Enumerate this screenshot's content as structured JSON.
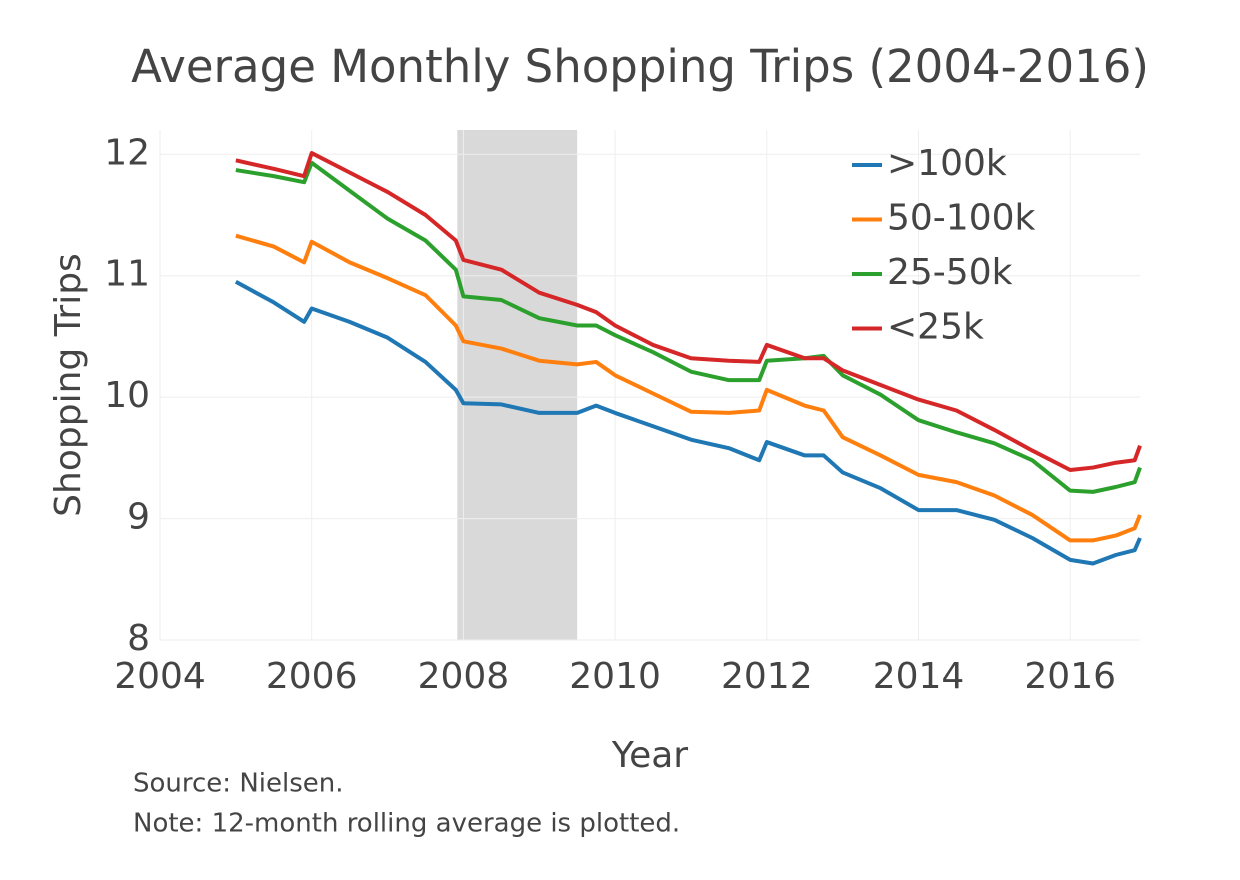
{
  "chart_data": {
    "type": "line",
    "title": "Average Monthly Shopping Trips (2004-2016)",
    "x_label": "Year",
    "y_label": "Shopping Trips",
    "notes": [
      "Source: Nielsen.",
      "Note: 12-month rolling average is plotted."
    ],
    "x": [
      2005.0,
      2005.5,
      2005.9,
      2006.0,
      2006.5,
      2007.0,
      2007.5,
      2007.9,
      2008.0,
      2008.5,
      2009.0,
      2009.5,
      2009.75,
      2010.0,
      2010.5,
      2011.0,
      2011.5,
      2011.9,
      2012.0,
      2012.5,
      2012.75,
      2013.0,
      2013.5,
      2014.0,
      2014.5,
      2015.0,
      2015.5,
      2016.0,
      2016.3,
      2016.6,
      2016.85,
      2016.92
    ],
    "series": [
      {
        "name": ">100k",
        "color": "#1f77b4",
        "values": [
          10.95,
          10.78,
          10.62,
          10.73,
          10.62,
          10.49,
          10.29,
          10.06,
          9.95,
          9.94,
          9.87,
          9.87,
          9.93,
          9.87,
          9.76,
          9.65,
          9.58,
          9.48,
          9.63,
          9.52,
          9.52,
          9.38,
          9.25,
          9.07,
          9.07,
          8.99,
          8.84,
          8.66,
          8.63,
          8.7,
          8.74,
          8.84
        ]
      },
      {
        "name": "50-100k",
        "color": "#ff7f0e",
        "values": [
          11.33,
          11.24,
          11.11,
          11.28,
          11.11,
          10.98,
          10.84,
          10.59,
          10.46,
          10.4,
          10.3,
          10.27,
          10.29,
          10.18,
          10.03,
          9.88,
          9.87,
          9.89,
          10.06,
          9.93,
          9.89,
          9.67,
          9.52,
          9.36,
          9.3,
          9.19,
          9.03,
          8.82,
          8.82,
          8.86,
          8.92,
          9.03
        ]
      },
      {
        "name": "25-50k",
        "color": "#2ca02c",
        "values": [
          11.87,
          11.82,
          11.77,
          11.93,
          11.7,
          11.47,
          11.29,
          11.05,
          10.83,
          10.8,
          10.65,
          10.59,
          10.59,
          10.51,
          10.37,
          10.21,
          10.14,
          10.14,
          10.3,
          10.32,
          10.34,
          10.18,
          10.02,
          9.81,
          9.71,
          9.62,
          9.48,
          9.23,
          9.22,
          9.26,
          9.3,
          9.42
        ]
      },
      {
        "name": "<25k",
        "color": "#d62728",
        "values": [
          11.95,
          11.88,
          11.82,
          12.01,
          11.85,
          11.69,
          11.5,
          11.29,
          11.13,
          11.05,
          10.86,
          10.76,
          10.7,
          10.59,
          10.43,
          10.32,
          10.3,
          10.29,
          10.43,
          10.32,
          10.32,
          10.22,
          10.1,
          9.98,
          9.89,
          9.73,
          9.56,
          9.4,
          9.42,
          9.46,
          9.48,
          9.6
        ]
      }
    ],
    "shaded_region": [
      2007.92,
      2009.5
    ],
    "shade_color": "#d9d9d9",
    "xlim": [
      2004,
      2016.92
    ],
    "xticks": [
      2004,
      2006,
      2008,
      2010,
      2012,
      2014,
      2016
    ],
    "ylim": [
      8,
      12.2
    ],
    "yticks": [
      8,
      9,
      10,
      11,
      12
    ],
    "grid": true,
    "legend": "top-right"
  }
}
